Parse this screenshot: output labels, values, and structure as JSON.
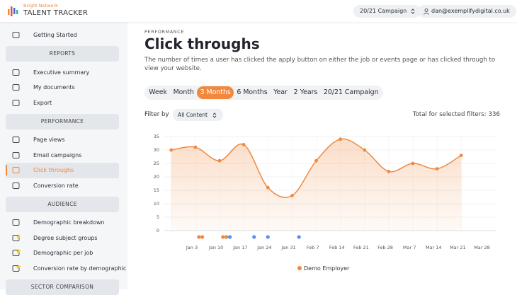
{
  "header": {
    "brand": "Bright Network",
    "product": "TALENT TRACKER",
    "campaign": "20/21 Campaign",
    "user": "dan@exemplifydigital.co.uk"
  },
  "sidebar": [
    {
      "label": "Getting Started"
    },
    {
      "section": "REPORTS"
    },
    {
      "label": "Executive summary"
    },
    {
      "label": "My documents"
    },
    {
      "label": "Export"
    },
    {
      "section": "PERFORMANCE"
    },
    {
      "label": "Page views"
    },
    {
      "label": "Email campaigns"
    },
    {
      "label": "Click throughs",
      "active": true
    },
    {
      "label": "Conversion rate"
    },
    {
      "section": "AUDIENCE"
    },
    {
      "label": "Demographic breakdown"
    },
    {
      "label": "Degree subject groups",
      "star": true
    },
    {
      "label": "Demographic per job",
      "star": true
    },
    {
      "label": "Conversion rate by demographic",
      "star": true
    },
    {
      "section": "SECTOR COMPARISON"
    }
  ],
  "page": {
    "kicker": "PERFORMANCE",
    "title": "Click throughs",
    "description": "The number of times a user has clicked the apply button on either the job or events page or has clicked through to view your website.",
    "tabs": [
      {
        "label": "Week"
      },
      {
        "label": "Month"
      },
      {
        "label": "3 Months",
        "active": true
      },
      {
        "label": "6 Months"
      },
      {
        "label": "Year"
      },
      {
        "label": "2 Years"
      },
      {
        "label": "20/21 Campaign"
      }
    ],
    "filter_label": "Filter by",
    "filter_value": "All Content",
    "total_label": "Total for selected filters:",
    "total": 336
  },
  "chart_data": {
    "type": "line",
    "x": [
      -3,
      4,
      11,
      18,
      25,
      32,
      39,
      46,
      53,
      60,
      67,
      74,
      81
    ],
    "series": [
      {
        "name": "Demo Employer",
        "color": "#f0883e",
        "values": [
          30,
          31,
          26,
          32,
          16,
          13,
          26,
          34,
          30,
          22,
          25,
          23,
          28
        ]
      }
    ],
    "xlim": [
      -5,
      91
    ],
    "xticks": [
      {
        "value": 3,
        "label": "Jan 3"
      },
      {
        "value": 10,
        "label": "Jan 10"
      },
      {
        "value": 17,
        "label": "Jan 17"
      },
      {
        "value": 24,
        "label": "Jan 24"
      },
      {
        "value": 31,
        "label": "Jan 31"
      },
      {
        "value": 38,
        "label": "Feb 7"
      },
      {
        "value": 45,
        "label": "Feb 14"
      },
      {
        "value": 52,
        "label": "Feb 21"
      },
      {
        "value": 59,
        "label": "Feb 28"
      },
      {
        "value": 66,
        "label": "Mar 7"
      },
      {
        "value": 73,
        "label": "Mar 14"
      },
      {
        "value": 80,
        "label": "Mar 21"
      },
      {
        "value": 87,
        "label": "Mar 28"
      }
    ],
    "ylim": [
      0,
      35
    ],
    "yticks": [
      0,
      5,
      10,
      15,
      20,
      25,
      30,
      35
    ],
    "grid": true,
    "markers": [
      {
        "x": 5,
        "color": "#f0883e"
      },
      {
        "x": 6,
        "color": "#f0883e"
      },
      {
        "x": 12,
        "color": "#f0883e"
      },
      {
        "x": 13,
        "color": "#f0883e"
      },
      {
        "x": 14,
        "color": "#5b8def"
      },
      {
        "x": 21,
        "color": "#5b8def"
      },
      {
        "x": 25,
        "color": "#5b8def"
      },
      {
        "x": 34,
        "color": "#5b8def"
      }
    ]
  }
}
